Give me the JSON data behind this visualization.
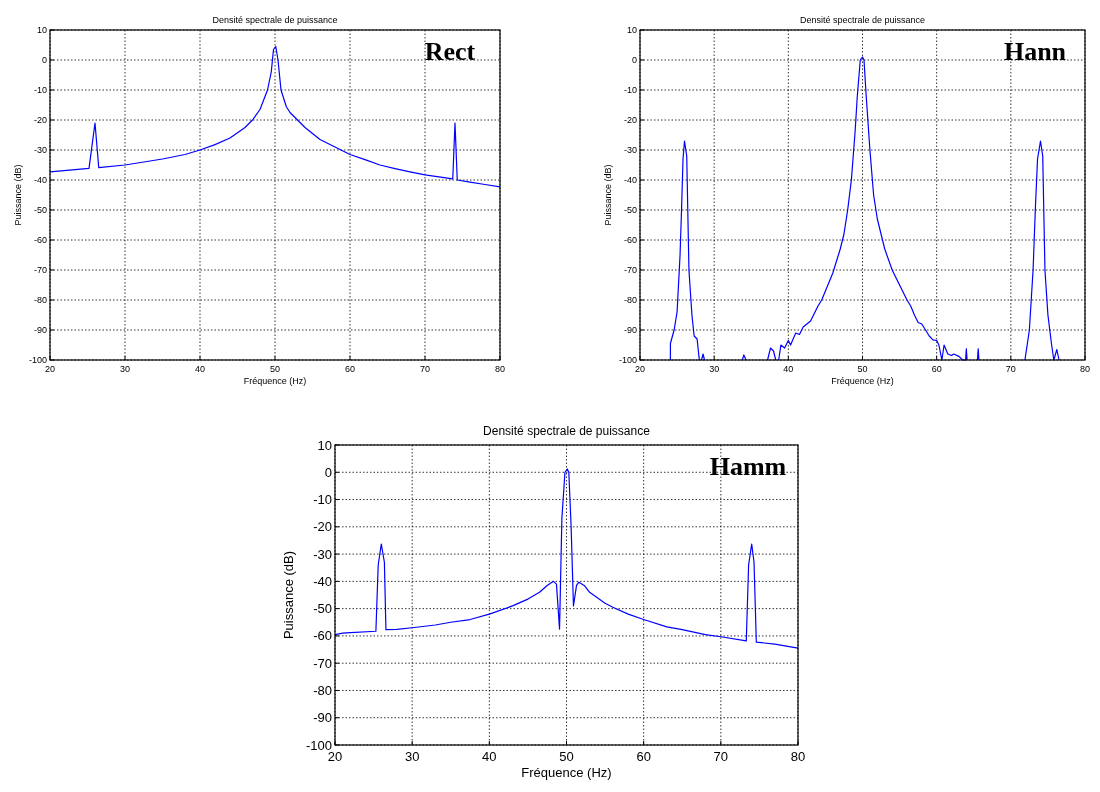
{
  "chart_data": [
    {
      "type": "line",
      "title": "Densité spectrale de puissance",
      "xlabel": "Fréquence (Hz)",
      "ylabel": "Puissance (dB)",
      "annotations": [
        "Rect"
      ],
      "xlim": [
        20,
        80
      ],
      "ylim": [
        -100,
        10
      ],
      "xticks": [
        20,
        30,
        40,
        50,
        60,
        70,
        80
      ],
      "yticks": [
        -100,
        -90,
        -80,
        -70,
        -60,
        -50,
        -40,
        -30,
        -20,
        -10,
        0,
        10
      ],
      "grid": true,
      "line_style": "solid",
      "series": [
        {
          "color": "#0000ff",
          "x": [
            20,
            25.2,
            26,
            26.5,
            30,
            35,
            38,
            40,
            42,
            44,
            46,
            47,
            48,
            49,
            49.5,
            49.8,
            50.1,
            50.4,
            50.8,
            51.5,
            52,
            53,
            54,
            56,
            58,
            60,
            62,
            64,
            66,
            68,
            70,
            73.7,
            74,
            74.3,
            76,
            78,
            80
          ],
          "values": [
            -37.3,
            -36.1,
            -21,
            -35.9,
            -35,
            -33,
            -31.5,
            -30,
            -28.2,
            -26,
            -22.5,
            -20,
            -16.5,
            -10,
            -4,
            3.5,
            4.5,
            0,
            -10,
            -15.5,
            -17.5,
            -20,
            -22.5,
            -26.5,
            -29,
            -31.5,
            -33.2,
            -35,
            -36.2,
            -37.3,
            -38.3,
            -39.6,
            -21,
            -40,
            -40.7,
            -41.5,
            -42.3
          ]
        }
      ]
    },
    {
      "type": "line",
      "title": "Densité spectrale de puissance",
      "xlabel": "Fréquence (Hz)",
      "ylabel": "Puissance (dB)",
      "annotations": [
        "Hann"
      ],
      "xlim": [
        20,
        80
      ],
      "ylim": [
        -100,
        10
      ],
      "xticks": [
        20,
        30,
        40,
        50,
        60,
        70,
        80
      ],
      "yticks": [
        -100,
        -90,
        -80,
        -70,
        -60,
        -50,
        -40,
        -30,
        -20,
        -10,
        0,
        10
      ],
      "grid": true,
      "line_style": "solid",
      "series": [
        {
          "color": "#0000ff",
          "x": [
            24.1,
            24.1,
            24.6,
            25,
            25.4,
            25.6,
            25.8,
            26,
            26.3,
            26.6,
            27,
            27.3,
            27.7,
            28
          ],
          "values": [
            -100,
            -94.5,
            -90,
            -84,
            -65,
            -50,
            -33,
            -27,
            -32,
            -70,
            -85,
            -92,
            -93,
            -100
          ]
        },
        {
          "color": "#0000ff",
          "x": [
            28.3,
            28.5,
            28.7
          ],
          "values": [
            -100,
            -98,
            -100
          ]
        },
        {
          "color": "#0000ff",
          "x": [
            33.8,
            34,
            34.3
          ],
          "values": [
            -100,
            -98.3,
            -100
          ]
        },
        {
          "color": "#0000ff",
          "x": [
            37.2,
            37.6,
            38,
            38.3
          ],
          "values": [
            -100,
            -96,
            -97,
            -100
          ]
        },
        {
          "color": "#0000ff",
          "x": [
            38.7,
            39,
            39.5,
            40,
            40.3,
            41,
            41.5,
            42,
            43,
            43.2,
            44,
            44.5,
            46,
            47,
            47.5,
            48,
            48.5,
            49,
            49.3,
            49.7,
            50,
            50.2,
            50.5,
            51,
            51.5,
            52,
            53,
            54,
            55,
            56,
            56.5,
            57,
            57.5,
            58,
            58.5,
            59,
            59.5,
            60,
            60.3,
            60.7,
            61,
            61.5,
            62,
            62.3,
            63,
            63.5,
            63.9,
            64,
            64.1
          ],
          "values": [
            -100,
            -95,
            -96,
            -93.5,
            -95,
            -91,
            -91.5,
            -89,
            -87,
            -86,
            -82,
            -80,
            -71,
            -63,
            -58,
            -50,
            -40,
            -24,
            -12,
            0,
            1,
            0,
            -12,
            -30,
            -45,
            -53,
            -63,
            -70,
            -75,
            -80,
            -82,
            -85,
            -87.5,
            -88,
            -90,
            -92,
            -93.3,
            -93.5,
            -95,
            -100,
            -95,
            -98,
            -98.5,
            -98,
            -98.8,
            -100,
            -100,
            -96.3,
            -100
          ]
        },
        {
          "color": "#0000ff",
          "x": [
            65.5,
            65.6,
            65.7
          ],
          "values": [
            -100,
            -96.3,
            -100
          ]
        },
        {
          "color": "#0000ff",
          "x": [
            71.9,
            72.5,
            73,
            73.3,
            73.6,
            74,
            74.3,
            74.6,
            75,
            75.5,
            75.8,
            76.2,
            76.5
          ],
          "values": [
            -100,
            -90,
            -70,
            -50,
            -33,
            -27,
            -32,
            -70,
            -85,
            -95,
            -100,
            -96.5,
            -100
          ]
        }
      ]
    },
    {
      "type": "line",
      "title": "Densité spectrale de puissance",
      "xlabel": "Fréquence (Hz)",
      "ylabel": "Puissance (dB)",
      "annotations": [
        "Hamm"
      ],
      "xlim": [
        20,
        80
      ],
      "ylim": [
        -100,
        10
      ],
      "xticks": [
        20,
        30,
        40,
        50,
        60,
        70,
        80
      ],
      "yticks": [
        -100,
        -90,
        -80,
        -70,
        -60,
        -50,
        -40,
        -30,
        -20,
        -10,
        0,
        10
      ],
      "grid": true,
      "line_style": "solid",
      "series": [
        {
          "color": "#0000ff",
          "x": [
            20,
            21,
            22,
            25.3,
            25.6,
            26,
            26.4,
            26.6,
            28,
            30,
            33,
            35,
            37.5,
            40,
            43,
            45,
            46.5,
            47.5,
            48.3,
            48.7,
            49.1,
            49.4,
            49.8,
            50.1,
            50.3,
            50.6,
            50.9,
            51.3,
            51.6,
            52.3,
            53,
            55,
            56,
            58,
            60,
            63,
            65,
            68,
            70,
            73.3,
            73.6,
            74,
            74.3,
            74.6,
            77,
            80
          ],
          "values": [
            -59.5,
            -59,
            -58.8,
            -58.3,
            -34,
            -26.3,
            -33,
            -57.7,
            -57.6,
            -57,
            -56,
            -55,
            -54,
            -52,
            -49,
            -46.5,
            -44,
            -41.5,
            -40,
            -41,
            -57.5,
            -17,
            0,
            1.2,
            0,
            -20,
            -49,
            -41.5,
            -40.3,
            -41.5,
            -44,
            -48,
            -49.5,
            -52,
            -54,
            -56.7,
            -57.7,
            -59.5,
            -60.3,
            -61.8,
            -34,
            -26.3,
            -33,
            -62.3,
            -63,
            -64.5
          ]
        }
      ]
    }
  ]
}
